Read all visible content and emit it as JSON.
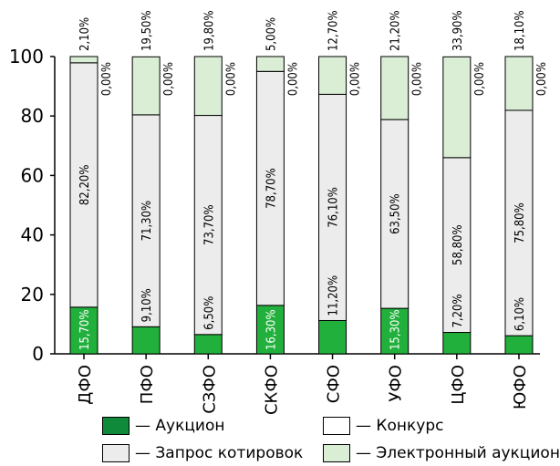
{
  "chart_data": {
    "type": "bar",
    "stacked": true,
    "categories": [
      "ДФО",
      "ПФО",
      "СЗФО",
      "СКФО",
      "СФО",
      "УФО",
      "ЦФО",
      "ЮФО"
    ],
    "ylim": [
      0,
      100
    ],
    "yticks": [
      "0",
      "20",
      "40",
      "60",
      "80",
      "100"
    ],
    "series": [
      {
        "name": "Аукцион",
        "values": [
          15.7,
          9.1,
          6.5,
          16.3,
          11.2,
          15.3,
          7.2,
          6.1
        ],
        "labels": [
          "15,70%",
          "9,10%",
          "6,50%",
          "16,30%",
          "11,20%",
          "15,30%",
          "7,20%",
          "6,10%"
        ]
      },
      {
        "name": "Запрос котировок",
        "values": [
          82.2,
          71.3,
          73.7,
          78.7,
          76.1,
          63.5,
          58.8,
          75.8
        ],
        "labels": [
          "82,20%",
          "71,30%",
          "73,70%",
          "78,70%",
          "76,10%",
          "63,50%",
          "58,80%",
          "75,80%"
        ]
      },
      {
        "name": "Электронный аукцион",
        "values": [
          2.1,
          19.5,
          19.8,
          5.0,
          12.7,
          21.2,
          33.9,
          18.1
        ],
        "labels": [
          "2,10%",
          "19,50%",
          "19,80%",
          "5,00%",
          "12,70%",
          "21,20%",
          "33,90%",
          "18,10%"
        ]
      },
      {
        "name": "Конкурс",
        "values": [
          0,
          0,
          0,
          0,
          0,
          0,
          0,
          0
        ],
        "labels": [
          "0,00%",
          "0,00%",
          "0,00%",
          "0,00%",
          "0,00%",
          "0,00%",
          "0,00%",
          "0,00%"
        ]
      }
    ],
    "colors": {
      "Аукцион": "#22b03c",
      "Запрос котировок": "#ececec",
      "Электронный аукцион": "#d9eed5",
      "Конкурс": "#ffffff"
    },
    "grid": false
  },
  "legend": {
    "items": [
      {
        "name": "Аукцион",
        "label": "— Аукцион",
        "color": "#0f8a3a"
      },
      {
        "name": "Конкурс",
        "label": "— Конкурс",
        "color": "#ffffff"
      },
      {
        "name": "Запрос котировок",
        "label": "— Запрос котировок",
        "color": "#ececec"
      },
      {
        "name": "Электронный аукцион",
        "label": "— Электронный аукцион",
        "color": "#d9eed5"
      }
    ]
  }
}
